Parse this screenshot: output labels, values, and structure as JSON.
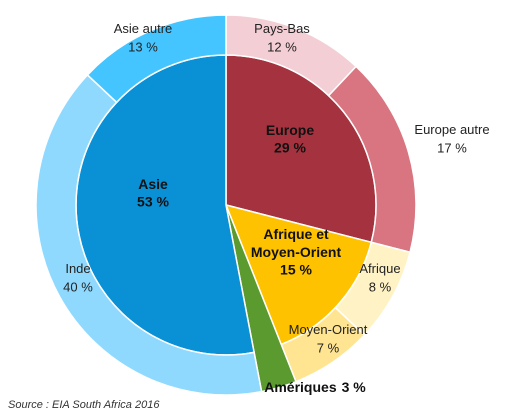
{
  "chart_data": {
    "type": "sunburst",
    "source": "Source : EIA South Africa 2016",
    "groups": [
      {
        "name": "Europe",
        "value": 29,
        "value_label": "29 %",
        "color": "#a5333f",
        "children": [
          {
            "name": "Pays-Bas",
            "value": 12,
            "value_label": "12 %",
            "color": "#f3ced4"
          },
          {
            "name": "Europe autre",
            "value": 17,
            "value_label": "17 %",
            "color": "#d87580"
          }
        ]
      },
      {
        "name": "Afrique et Moyen-Orient",
        "value": 15,
        "value_label": "15 %",
        "color": "#ffc200",
        "children": [
          {
            "name": "Afrique",
            "value": 8,
            "value_label": "8 %",
            "color": "#fff3c6"
          },
          {
            "name": "Moyen-Orient",
            "value": 7,
            "value_label": "7 %",
            "color": "#ffe592"
          }
        ]
      },
      {
        "name": "Amériques",
        "value": 3,
        "value_label": "3 %",
        "color": "#5b9a2f",
        "children": []
      },
      {
        "name": "Asie",
        "value": 53,
        "value_label": "53 %",
        "color": "#0a90d5",
        "children": [
          {
            "name": "Inde",
            "value": 40,
            "value_label": "40 %",
            "color": "#8fd9ff"
          },
          {
            "name": "Asie autre",
            "value": 13,
            "value_label": "13 %",
            "color": "#44c5ff"
          }
        ]
      }
    ]
  }
}
